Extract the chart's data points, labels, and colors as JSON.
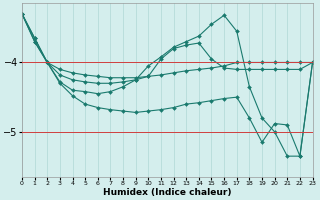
{
  "xlabel": "Humidex (Indice chaleur)",
  "bg_color": "#d4eeed",
  "grid_color": "#b0d8d5",
  "line_color": "#1a7a6e",
  "red_line_color": "#d04040",
  "xmin": 0,
  "xmax": 23,
  "ymin": -5.65,
  "ymax": -3.15,
  "yticks": [
    -5,
    -4
  ],
  "ytick_fontsize": 7,
  "xtick_fontsize": 4.5,
  "xlabel_fontsize": 6.5,
  "series": [
    {
      "x": [
        0,
        1,
        2,
        3,
        4,
        5,
        6,
        7,
        8,
        9,
        10,
        11,
        12,
        13,
        14,
        15,
        16,
        17,
        18,
        19,
        20,
        21,
        22,
        23
      ],
      "y": [
        -3.3,
        -3.7,
        -4.0,
        -4.1,
        -4.15,
        -4.18,
        -4.2,
        -4.22,
        -4.22,
        -4.22,
        -4.2,
        -4.18,
        -4.15,
        -4.12,
        -4.1,
        -4.08,
        -4.05,
        -4.0,
        -4.0,
        -4.0,
        -4.0,
        -4.0,
        -4.0,
        -4.0
      ]
    },
    {
      "x": [
        0,
        1,
        2,
        3,
        4,
        5,
        6,
        7,
        8,
        9,
        10,
        11,
        12,
        13,
        14,
        15,
        16,
        17,
        18,
        19,
        20,
        21,
        22,
        23
      ],
      "y": [
        -3.3,
        -3.7,
        -4.0,
        -4.18,
        -4.25,
        -4.28,
        -4.3,
        -4.3,
        -4.28,
        -4.25,
        -4.2,
        -3.95,
        -3.8,
        -3.75,
        -3.72,
        -3.95,
        -4.08,
        -4.1,
        -4.1,
        -4.1,
        -4.1,
        -4.1,
        -4.1,
        -4.0
      ]
    },
    {
      "x": [
        0,
        1,
        2,
        3,
        4,
        5,
        6,
        7,
        8,
        9,
        10,
        11,
        12,
        13,
        14,
        15,
        16,
        17,
        18,
        19,
        20,
        21,
        22,
        23
      ],
      "y": [
        -3.3,
        -3.65,
        -4.0,
        -4.28,
        -4.4,
        -4.42,
        -4.45,
        -4.42,
        -4.35,
        -4.25,
        -4.05,
        -3.92,
        -3.78,
        -3.7,
        -3.62,
        -3.45,
        -3.32,
        -3.55,
        -4.35,
        -4.8,
        -5.0,
        -5.35,
        -5.35,
        -4.0
      ]
    },
    {
      "x": [
        0,
        1,
        2,
        3,
        4,
        5,
        6,
        7,
        8,
        9,
        10,
        11,
        12,
        13,
        14,
        15,
        16,
        17,
        18,
        19,
        20,
        21,
        22,
        23
      ],
      "y": [
        -3.3,
        -3.65,
        -4.0,
        -4.3,
        -4.48,
        -4.6,
        -4.65,
        -4.68,
        -4.7,
        -4.72,
        -4.7,
        -4.68,
        -4.65,
        -4.6,
        -4.58,
        -4.55,
        -4.52,
        -4.5,
        -4.8,
        -5.15,
        -4.88,
        -4.9,
        -5.35,
        -4.0
      ]
    }
  ]
}
